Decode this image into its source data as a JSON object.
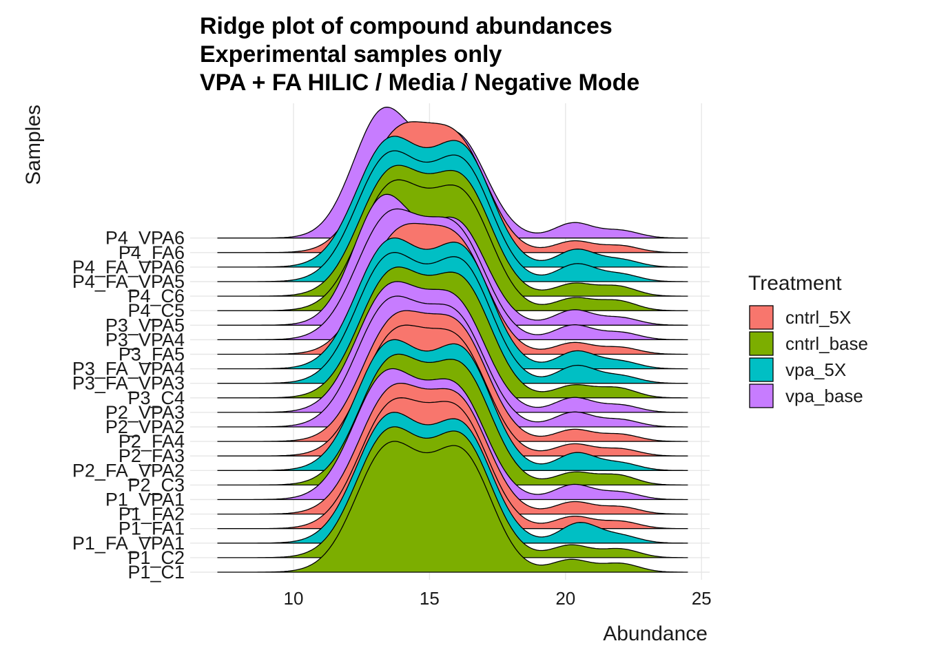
{
  "chart_data": {
    "type": "ridgeline",
    "title": [
      "Ridge plot of compound abundances",
      "Experimental samples only",
      "VPA + FA HILIC / Media / Negative Mode"
    ],
    "xlabel": "Abundance",
    "ylabel": "Samples",
    "xlim": [
      6.2,
      25.3
    ],
    "x_ticks": [
      10,
      15,
      20,
      25
    ],
    "grid": true,
    "legend": {
      "title": "Treatment",
      "position": "right",
      "items": [
        {
          "label": "cntrl_5X",
          "color": "#F8766D"
        },
        {
          "label": "cntrl_base",
          "color": "#7CAE00"
        },
        {
          "label": "vpa_5X",
          "color": "#00BFC4"
        },
        {
          "label": "vpa_base",
          "color": "#C77CFF"
        }
      ]
    },
    "ridges": [
      {
        "sample": "P1_C1",
        "treatment": "cntrl_base",
        "range": [
          7.2,
          24.5
        ],
        "peaks": [
          [
            13.5,
            1.0,
            1.2
          ],
          [
            16.2,
            0.92,
            1.1
          ],
          [
            20.2,
            0.1,
            0.7
          ],
          [
            22.0,
            0.07,
            0.7
          ]
        ],
        "tail": 1
      },
      {
        "sample": "P1_C2",
        "treatment": "cntrl_base",
        "range": [
          7.2,
          24.5
        ],
        "peaks": [
          [
            13.5,
            1.0,
            1.2
          ],
          [
            16.2,
            0.92,
            1.1
          ],
          [
            20.2,
            0.1,
            0.7
          ],
          [
            22.0,
            0.07,
            0.7
          ]
        ],
        "tail": 1
      },
      {
        "sample": "P1_FA_VPA1",
        "treatment": "vpa_5X",
        "range": [
          7.2,
          24.5
        ],
        "peaks": [
          [
            13.5,
            1.0,
            1.2
          ],
          [
            16.2,
            0.9,
            1.1
          ],
          [
            20.5,
            0.16,
            0.7
          ],
          [
            22.0,
            0.06,
            0.7
          ]
        ],
        "tail": 1
      },
      {
        "sample": "P1_FA1",
        "treatment": "cntrl_5X",
        "range": [
          7.2,
          24.5
        ],
        "peaks": [
          [
            13.6,
            1.0,
            1.2
          ],
          [
            16.1,
            0.9,
            1.1
          ],
          [
            20.3,
            0.1,
            0.7
          ],
          [
            22.0,
            0.06,
            0.7
          ]
        ],
        "tail": 1
      },
      {
        "sample": "P1_FA2",
        "treatment": "cntrl_5X",
        "range": [
          7.2,
          24.5
        ],
        "peaks": [
          [
            13.6,
            1.0,
            1.2
          ],
          [
            16.1,
            0.88,
            1.1
          ],
          [
            20.3,
            0.1,
            0.7
          ],
          [
            22.0,
            0.06,
            0.7
          ]
        ],
        "tail": 1
      },
      {
        "sample": "P1_VPA1",
        "treatment": "vpa_base",
        "range": [
          7.2,
          24.5
        ],
        "peaks": [
          [
            13.4,
            1.0,
            1.2
          ],
          [
            16.0,
            0.85,
            1.1
          ],
          [
            20.3,
            0.12,
            0.7
          ],
          [
            22.0,
            0.06,
            0.7
          ]
        ],
        "tail": 1
      },
      {
        "sample": "P2_C3",
        "treatment": "cntrl_base",
        "range": [
          7.2,
          24.5
        ],
        "peaks": [
          [
            13.6,
            1.0,
            1.2
          ],
          [
            16.2,
            0.9,
            1.1
          ],
          [
            20.3,
            0.1,
            0.7
          ],
          [
            21.9,
            0.08,
            0.7
          ]
        ],
        "tail": 1
      },
      {
        "sample": "P2_FA_VPA2",
        "treatment": "vpa_5X",
        "range": [
          7.2,
          24.5
        ],
        "peaks": [
          [
            13.5,
            1.0,
            1.2
          ],
          [
            16.2,
            0.92,
            1.1
          ],
          [
            20.4,
            0.14,
            0.7
          ],
          [
            22.0,
            0.06,
            0.7
          ]
        ],
        "tail": 1
      },
      {
        "sample": "P2_FA3",
        "treatment": "cntrl_5X",
        "range": [
          7.2,
          24.5
        ],
        "peaks": [
          [
            13.7,
            1.0,
            1.2
          ],
          [
            16.1,
            0.88,
            1.1
          ],
          [
            20.3,
            0.1,
            0.7
          ],
          [
            22.0,
            0.06,
            0.7
          ]
        ],
        "tail": 1
      },
      {
        "sample": "P2_FA4",
        "treatment": "cntrl_5X",
        "range": [
          7.2,
          24.5
        ],
        "peaks": [
          [
            13.7,
            1.0,
            1.2
          ],
          [
            16.1,
            0.88,
            1.1
          ],
          [
            20.3,
            0.1,
            0.7
          ],
          [
            22.0,
            0.06,
            0.7
          ]
        ],
        "tail": 1
      },
      {
        "sample": "P2_VPA2",
        "treatment": "vpa_base",
        "range": [
          7.2,
          24.5
        ],
        "peaks": [
          [
            13.5,
            1.0,
            1.2
          ],
          [
            16.0,
            0.85,
            1.1
          ],
          [
            20.3,
            0.12,
            0.7
          ],
          [
            22.0,
            0.06,
            0.7
          ]
        ],
        "tail": 1
      },
      {
        "sample": "P2_VPA3",
        "treatment": "vpa_base",
        "range": [
          7.2,
          24.5
        ],
        "peaks": [
          [
            13.5,
            1.0,
            1.2
          ],
          [
            16.0,
            0.85,
            1.1
          ],
          [
            20.3,
            0.12,
            0.7
          ],
          [
            22.0,
            0.06,
            0.7
          ]
        ],
        "tail": 1
      },
      {
        "sample": "P3_C4",
        "treatment": "cntrl_base",
        "range": [
          7.2,
          24.5
        ],
        "peaks": [
          [
            13.6,
            1.0,
            1.2
          ],
          [
            16.2,
            0.9,
            1.1
          ],
          [
            20.3,
            0.1,
            0.7
          ],
          [
            21.9,
            0.08,
            0.7
          ]
        ],
        "tail": 1
      },
      {
        "sample": "P3_FA_VPA3",
        "treatment": "vpa_5X",
        "range": [
          7.2,
          24.5
        ],
        "peaks": [
          [
            13.5,
            1.0,
            1.2
          ],
          [
            16.2,
            0.92,
            1.1
          ],
          [
            20.4,
            0.14,
            0.7
          ],
          [
            22.0,
            0.06,
            0.7
          ]
        ],
        "tail": 1
      },
      {
        "sample": "P3_FA_VPA4",
        "treatment": "vpa_5X",
        "range": [
          7.2,
          24.5
        ],
        "peaks": [
          [
            13.5,
            1.0,
            1.2
          ],
          [
            16.2,
            0.92,
            1.1
          ],
          [
            20.4,
            0.14,
            0.7
          ],
          [
            22.0,
            0.06,
            0.7
          ]
        ],
        "tail": 1
      },
      {
        "sample": "P3_FA5",
        "treatment": "cntrl_5X",
        "range": [
          7.2,
          24.5
        ],
        "peaks": [
          [
            13.8,
            1.0,
            1.2
          ],
          [
            16.1,
            0.88,
            1.1
          ],
          [
            20.3,
            0.1,
            0.7
          ],
          [
            22.0,
            0.06,
            0.7
          ]
        ],
        "tail": 1
      },
      {
        "sample": "P3_VPA4",
        "treatment": "vpa_base",
        "range": [
          7.2,
          24.5
        ],
        "peaks": [
          [
            13.5,
            1.0,
            1.2
          ],
          [
            16.0,
            0.85,
            1.1
          ],
          [
            20.3,
            0.12,
            0.7
          ],
          [
            22.0,
            0.06,
            0.7
          ]
        ],
        "tail": 1
      },
      {
        "sample": "P3_VPA5",
        "treatment": "vpa_base",
        "range": [
          7.2,
          24.5
        ],
        "peaks": [
          [
            13.3,
            1.0,
            1.1
          ],
          [
            16.0,
            0.8,
            1.1
          ],
          [
            20.3,
            0.12,
            0.7
          ],
          [
            22.0,
            0.06,
            0.7
          ]
        ],
        "tail": 1
      },
      {
        "sample": "P4_C5",
        "treatment": "cntrl_base",
        "range": [
          7.2,
          24.5
        ],
        "peaks": [
          [
            13.6,
            1.0,
            1.2
          ],
          [
            16.2,
            0.9,
            1.1
          ],
          [
            20.3,
            0.1,
            0.7
          ],
          [
            21.9,
            0.08,
            0.7
          ]
        ],
        "tail": 1
      },
      {
        "sample": "P4_C6",
        "treatment": "cntrl_base",
        "range": [
          7.2,
          24.5
        ],
        "peaks": [
          [
            13.6,
            1.0,
            1.2
          ],
          [
            16.2,
            0.9,
            1.1
          ],
          [
            20.3,
            0.1,
            0.7
          ],
          [
            21.9,
            0.08,
            0.7
          ]
        ],
        "tail": 1
      },
      {
        "sample": "P4_FA_VPA5",
        "treatment": "vpa_5X",
        "range": [
          7.2,
          24.5
        ],
        "peaks": [
          [
            13.5,
            1.0,
            1.2
          ],
          [
            16.2,
            0.92,
            1.1
          ],
          [
            20.4,
            0.14,
            0.7
          ],
          [
            22.0,
            0.06,
            0.7
          ]
        ],
        "tail": 1
      },
      {
        "sample": "P4_FA_VPA6",
        "treatment": "vpa_5X",
        "range": [
          7.2,
          24.5
        ],
        "peaks": [
          [
            13.5,
            1.0,
            1.2
          ],
          [
            16.2,
            0.92,
            1.1
          ],
          [
            20.4,
            0.14,
            0.7
          ],
          [
            22.0,
            0.06,
            0.7
          ]
        ],
        "tail": 1
      },
      {
        "sample": "P4_FA6",
        "treatment": "cntrl_5X",
        "range": [
          7.2,
          24.5
        ],
        "peaks": [
          [
            13.8,
            1.0,
            1.2
          ],
          [
            16.1,
            0.88,
            1.1
          ],
          [
            20.3,
            0.1,
            0.7
          ],
          [
            22.0,
            0.06,
            0.7
          ]
        ],
        "tail": 1
      },
      {
        "sample": "P4_VPA6",
        "treatment": "vpa_base",
        "range": [
          7.2,
          24.5
        ],
        "peaks": [
          [
            13.3,
            1.0,
            1.1
          ],
          [
            16.0,
            0.8,
            1.1
          ],
          [
            20.3,
            0.12,
            0.7
          ],
          [
            22.0,
            0.06,
            0.7
          ]
        ],
        "tail": 1
      }
    ]
  }
}
